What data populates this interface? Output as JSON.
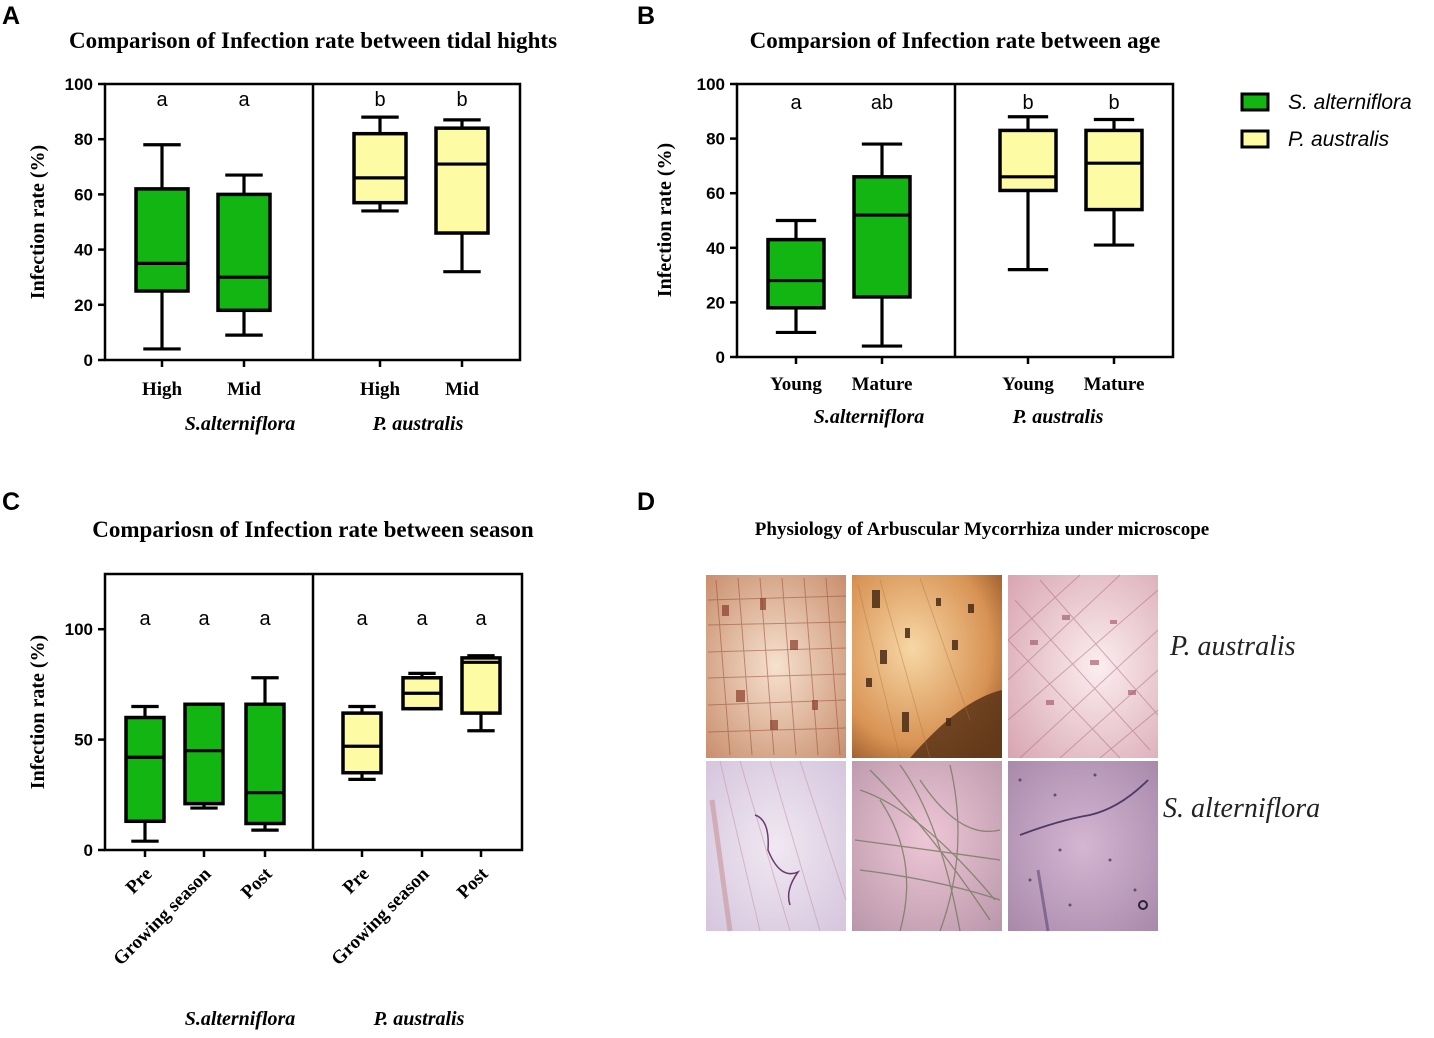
{
  "colors": {
    "salt": "#12b512",
    "phra": "#fdfca4",
    "stroke": "#000000"
  },
  "legend": [
    {
      "name": "S. alterniflora",
      "color": "#12b512"
    },
    {
      "name": "P. australis",
      "color": "#fdfca4"
    }
  ],
  "chart_data": [
    {
      "panel": "A",
      "type": "box",
      "title": "Comparison of Infection rate between tidal hights",
      "ylabel": "Infection rate (%)",
      "ylim": [
        0,
        100
      ],
      "yticks": [
        "0",
        "20",
        "40",
        "60",
        "80",
        "100"
      ],
      "groups": [
        "S.alterniflora",
        "P. australis"
      ],
      "categories": [
        "High",
        "Mid",
        "High",
        "Mid"
      ],
      "species": [
        "salt",
        "salt",
        "phra",
        "phra"
      ],
      "letters": [
        "a",
        "a",
        "b",
        "b"
      ],
      "boxes": [
        {
          "min": 4,
          "q1": 25,
          "median": 35,
          "q3": 62,
          "max": 78
        },
        {
          "min": 9,
          "q1": 18,
          "median": 30,
          "q3": 60,
          "max": 67
        },
        {
          "min": 54,
          "q1": 57,
          "median": 66,
          "q3": 82,
          "max": 88
        },
        {
          "min": 32,
          "q1": 46,
          "median": 71,
          "q3": 84,
          "max": 87
        }
      ]
    },
    {
      "panel": "B",
      "type": "box",
      "title": "Comparsion of Infection rate between age",
      "ylabel": "Infection rate (%)",
      "ylim": [
        0,
        100
      ],
      "yticks": [
        "0",
        "20",
        "40",
        "60",
        "80",
        "100"
      ],
      "groups": [
        "S.alterniflora",
        "P. australis"
      ],
      "categories": [
        "Young",
        "Mature",
        "Young",
        "Mature"
      ],
      "species": [
        "salt",
        "salt",
        "phra",
        "phra"
      ],
      "letters": [
        "a",
        "ab",
        "b",
        "b"
      ],
      "boxes": [
        {
          "min": 9,
          "q1": 18,
          "median": 28,
          "q3": 43,
          "max": 50
        },
        {
          "min": 4,
          "q1": 22,
          "median": 52,
          "q3": 66,
          "max": 78
        },
        {
          "min": 32,
          "q1": 61,
          "median": 66,
          "q3": 83,
          "max": 88
        },
        {
          "min": 41,
          "q1": 54,
          "median": 71,
          "q3": 83,
          "max": 87
        }
      ]
    },
    {
      "panel": "C",
      "type": "box",
      "title": "Compariosn of Infection rate between season",
      "ylabel": "Infection rate (%)",
      "ylim": [
        0,
        125
      ],
      "yticks": [
        "0",
        "50",
        "100"
      ],
      "groups": [
        "S.alterniflora",
        "P. australis"
      ],
      "categories": [
        "Pre",
        "Growing season",
        "Post",
        "Pre",
        "Growing season",
        "Post"
      ],
      "species": [
        "salt",
        "salt",
        "salt",
        "phra",
        "phra",
        "phra"
      ],
      "letters": [
        "a",
        "a",
        "a",
        "a",
        "a",
        "a"
      ],
      "boxes": [
        {
          "min": 4,
          "q1": 13,
          "median": 42,
          "q3": 60,
          "max": 65
        },
        {
          "min": 19,
          "q1": 21,
          "median": 45,
          "q3": 66,
          "max": 66
        },
        {
          "min": 9,
          "q1": 12,
          "median": 26,
          "q3": 66,
          "max": 78
        },
        {
          "min": 32,
          "q1": 35,
          "median": 47,
          "q3": 62,
          "max": 65
        },
        {
          "min": 64,
          "q1": 64,
          "median": 71,
          "q3": 78,
          "max": 80
        },
        {
          "min": 54,
          "q1": 62,
          "median": 85,
          "q3": 87,
          "max": 88
        }
      ]
    }
  ],
  "panel_d": {
    "label": "D",
    "title": "Physiology of Arbuscular Mycorrhiza under microscope",
    "row_labels": [
      "P. australis",
      "S. alterniflora"
    ]
  }
}
